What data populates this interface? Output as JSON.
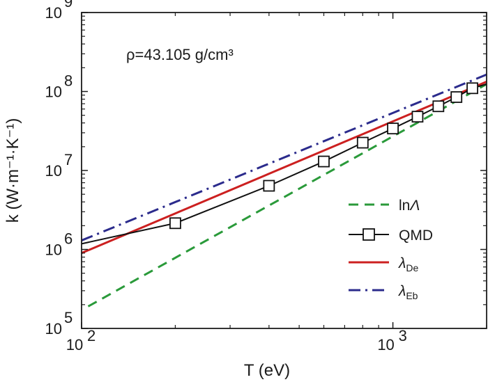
{
  "chart_data": {
    "type": "line",
    "title": "",
    "xlabel": "T (eV)",
    "ylabel": "k (W·m⁻¹·K⁻¹)",
    "x_scale": "log",
    "y_scale": "log",
    "xlim": [
      100,
      2000
    ],
    "ylim": [
      100000,
      1000000000
    ],
    "x_ticks": [
      {
        "value": 100,
        "label": "10",
        "exp": "2"
      },
      {
        "value": 1000,
        "label": "10",
        "exp": "3"
      }
    ],
    "y_ticks": [
      {
        "value": 100000,
        "label": "10",
        "exp": "5"
      },
      {
        "value": 1000000,
        "label": "10",
        "exp": "6"
      },
      {
        "value": 10000000,
        "label": "10",
        "exp": "7"
      },
      {
        "value": 100000000,
        "label": "10",
        "exp": "8"
      },
      {
        "value": 1000000000,
        "label": "10",
        "exp": "9"
      }
    ],
    "annotation": "ρ=43.105 g/cm³",
    "grid": false,
    "legend_position": "right-bottom",
    "series": [
      {
        "name": "lnΛ",
        "legend_main": "ln",
        "legend_italic": "Λ",
        "style": "dashed",
        "color": "#2a9a3a",
        "x": [
          105,
          2000
        ],
        "y": [
          190000,
          124000000
        ]
      },
      {
        "name": "QMD",
        "legend_main": "QMD",
        "style": "solid-square",
        "color": "#111111",
        "x": [
          100,
          200,
          400,
          600,
          800,
          1000,
          1200,
          1400,
          1600,
          1800,
          2000
        ],
        "y": [
          1180000,
          2150000,
          6400000,
          13000000,
          22500000,
          34000000,
          48000000,
          65000000,
          85000000,
          110000000,
          124000000
        ]
      },
      {
        "name": "λDe",
        "legend_italic": "λ",
        "legend_sub": "De",
        "style": "solid",
        "color": "#cc2020",
        "x": [
          100,
          2000
        ],
        "y": [
          900000,
          133000000
        ]
      },
      {
        "name": "λEb",
        "legend_italic": "λ",
        "legend_sub": "Eb",
        "style": "dash-dot",
        "color": "#2b2b8c",
        "x": [
          100,
          2000
        ],
        "y": [
          1300000,
          164000000
        ]
      }
    ]
  }
}
